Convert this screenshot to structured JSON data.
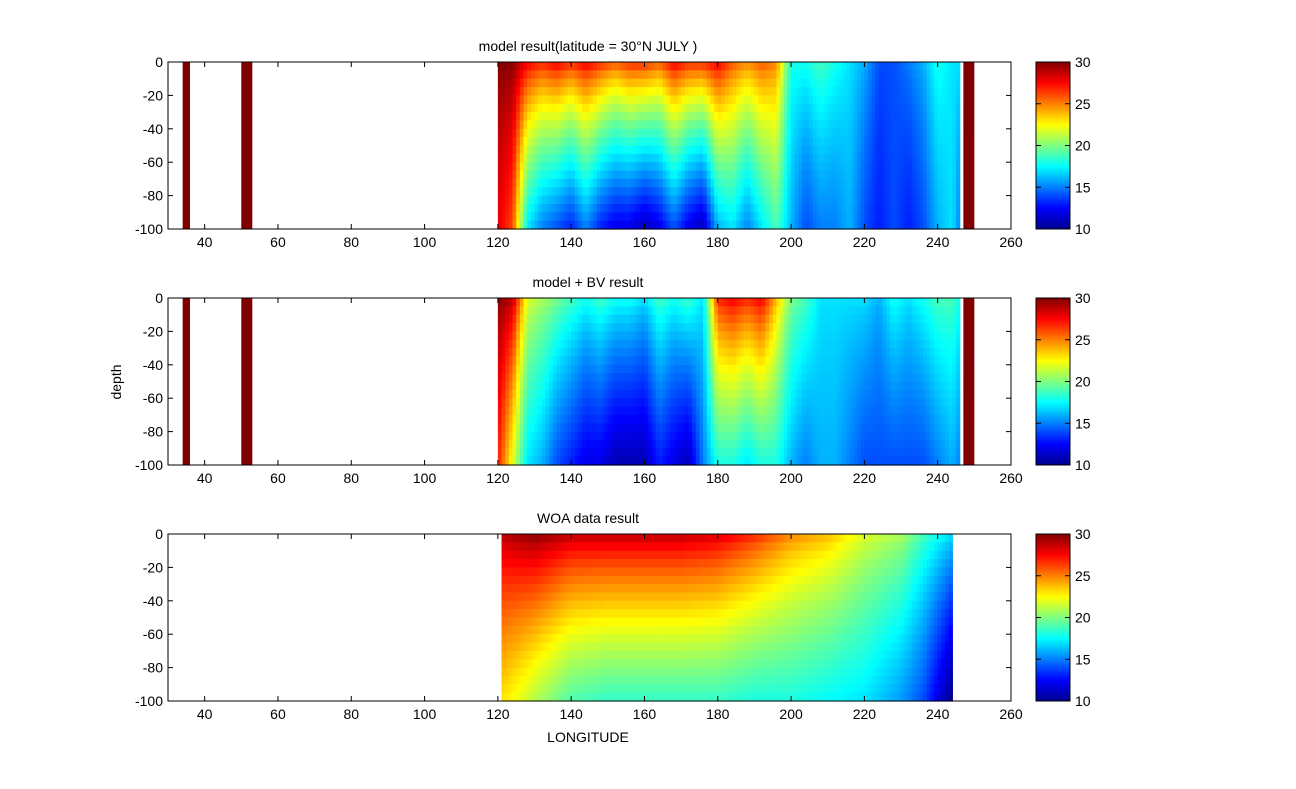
{
  "figure": {
    "ylabel": "depth",
    "xlabel": "LONGITUDE",
    "colormap": "jet",
    "colors": {
      "background": "#ffffff",
      "land_mask": "#800000",
      "axis": "#000000"
    }
  },
  "chart_data": [
    {
      "type": "heatmap",
      "title": "model result(latitude = 30°N JULY )",
      "xlim": [
        30,
        260
      ],
      "ylim": [
        -100,
        0
      ],
      "xticks": [
        40,
        60,
        80,
        100,
        120,
        140,
        160,
        180,
        200,
        220,
        240,
        260
      ],
      "yticks": [
        0,
        -20,
        -40,
        -60,
        -80,
        -100
      ],
      "clim": [
        10,
        30
      ],
      "cticks": [
        30,
        25,
        20,
        15,
        10
      ],
      "value_units": "temperature",
      "land_bars": [
        [
          34,
          36
        ],
        [
          50,
          53
        ],
        [
          247,
          250
        ]
      ],
      "data_lon_range": [
        120,
        246
      ],
      "surface_temp": {
        "lon": [
          120,
          124,
          128,
          132,
          136,
          140,
          144,
          148,
          152,
          156,
          160,
          164,
          168,
          172,
          176,
          180,
          184,
          188,
          192,
          196,
          200,
          204,
          208,
          212,
          216,
          220,
          224,
          228,
          232,
          236,
          240,
          244,
          246
        ],
        "values": [
          30,
          30,
          28,
          27,
          28,
          27,
          28,
          27,
          26,
          27,
          27,
          26,
          28,
          27,
          27,
          28,
          26,
          25,
          26,
          25,
          18,
          18,
          19,
          18,
          17,
          16,
          14,
          14,
          15,
          16,
          18,
          17,
          17
        ]
      },
      "bottom_temp": {
        "lon": [
          120,
          124,
          128,
          132,
          136,
          140,
          144,
          148,
          152,
          156,
          160,
          164,
          168,
          172,
          176,
          180,
          184,
          188,
          192,
          196,
          200,
          204,
          208,
          212,
          216,
          220,
          224,
          228,
          232,
          236,
          240,
          244,
          246
        ],
        "values": [
          28,
          26,
          17,
          15,
          14,
          13,
          15,
          13,
          12,
          12,
          11,
          12,
          14,
          12,
          11,
          16,
          17,
          15,
          17,
          19,
          16,
          14,
          15,
          15,
          16,
          14,
          13,
          14,
          13,
          14,
          16,
          17,
          15
        ]
      }
    },
    {
      "type": "heatmap",
      "title": "model + BV result",
      "xlim": [
        30,
        260
      ],
      "ylim": [
        -100,
        0
      ],
      "xticks": [
        40,
        60,
        80,
        100,
        120,
        140,
        160,
        180,
        200,
        220,
        240,
        260
      ],
      "yticks": [
        0,
        -20,
        -40,
        -60,
        -80,
        -100
      ],
      "clim": [
        10,
        30
      ],
      "cticks": [
        30,
        25,
        20,
        15,
        10
      ],
      "value_units": "temperature",
      "land_bars": [
        [
          34,
          36
        ],
        [
          50,
          53
        ],
        [
          247,
          250
        ]
      ],
      "data_lon_range": [
        120,
        246
      ],
      "surface_temp": {
        "lon": [
          120,
          124,
          128,
          132,
          136,
          140,
          144,
          148,
          152,
          156,
          160,
          164,
          168,
          172,
          176,
          180,
          184,
          188,
          192,
          196,
          200,
          204,
          208,
          212,
          216,
          220,
          224,
          228,
          232,
          236,
          240,
          244,
          246
        ],
        "values": [
          30,
          29,
          22,
          21,
          20,
          19,
          18,
          19,
          18,
          18,
          17,
          19,
          18,
          19,
          17,
          27,
          28,
          27,
          28,
          24,
          20,
          19,
          17,
          17,
          17,
          17,
          16,
          18,
          17,
          18,
          19,
          19,
          18
        ]
      },
      "bottom_temp": {
        "lon": [
          120,
          124,
          128,
          132,
          136,
          140,
          144,
          148,
          152,
          156,
          160,
          164,
          168,
          172,
          176,
          180,
          184,
          188,
          192,
          196,
          200,
          204,
          208,
          212,
          216,
          220,
          224,
          228,
          232,
          236,
          240,
          244,
          246
        ],
        "values": [
          27,
          22,
          17,
          16,
          14,
          13,
          12,
          12,
          11,
          11,
          11,
          13,
          12,
          11,
          15,
          18,
          18,
          17,
          18,
          18,
          16,
          15,
          16,
          16,
          15,
          14,
          14,
          14,
          14,
          14,
          15,
          16,
          15
        ]
      }
    },
    {
      "type": "heatmap",
      "title": "WOA data result",
      "xlim": [
        30,
        260
      ],
      "ylim": [
        -100,
        0
      ],
      "xticks": [
        40,
        60,
        80,
        100,
        120,
        140,
        160,
        180,
        200,
        220,
        240,
        260
      ],
      "yticks": [
        0,
        -20,
        -40,
        -60,
        -80,
        -100
      ],
      "clim": [
        10,
        30
      ],
      "cticks": [
        30,
        25,
        20,
        15,
        10
      ],
      "value_units": "temperature",
      "land_bars": [],
      "data_lon_range": [
        121,
        244
      ],
      "surface_temp": {
        "lon": [
          121,
          130,
          140,
          150,
          160,
          170,
          180,
          190,
          200,
          210,
          220,
          230,
          236,
          240,
          244
        ],
        "values": [
          29,
          30,
          29,
          29,
          29,
          29,
          28.5,
          27,
          25,
          24,
          22,
          21,
          19,
          18,
          17
        ]
      },
      "bottom_temp": {
        "lon": [
          121,
          126,
          130,
          140,
          150,
          160,
          170,
          180,
          190,
          200,
          210,
          220,
          230,
          236,
          240,
          244
        ],
        "values": [
          23,
          22,
          21,
          19,
          18.5,
          18.5,
          18.5,
          18.5,
          18,
          18,
          17.5,
          17,
          15.5,
          14,
          12,
          10
        ]
      }
    }
  ]
}
